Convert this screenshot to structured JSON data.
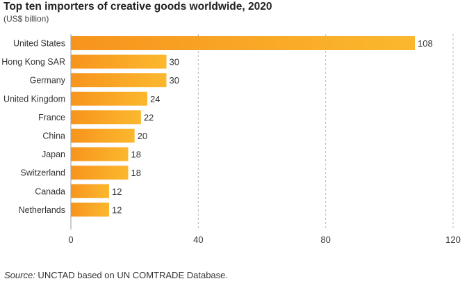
{
  "chart_data": {
    "type": "bar",
    "orientation": "horizontal",
    "title": "Top ten importers of creative goods worldwide, 2020",
    "subtitle": "(US$ billion)",
    "categories": [
      "United States",
      "Hong Kong SAR",
      "Germany",
      "United Kingdom",
      "France",
      "China",
      "Japan",
      "Switzerland",
      "Canada",
      "Netherlands"
    ],
    "values": [
      108,
      30,
      30,
      24,
      22,
      20,
      18,
      18,
      12,
      12
    ],
    "xlim": [
      0,
      120
    ],
    "xticks": [
      0,
      40,
      80,
      120
    ],
    "grid": "vertical dashed",
    "colors": {
      "bar_start": "#f7941d",
      "bar_end": "#fbb82e",
      "grid": "#b9b9b9",
      "axis": "#999999"
    }
  },
  "source": {
    "label": "Source:",
    "text": " UNCTAD based on UN COMTRADE Database."
  }
}
